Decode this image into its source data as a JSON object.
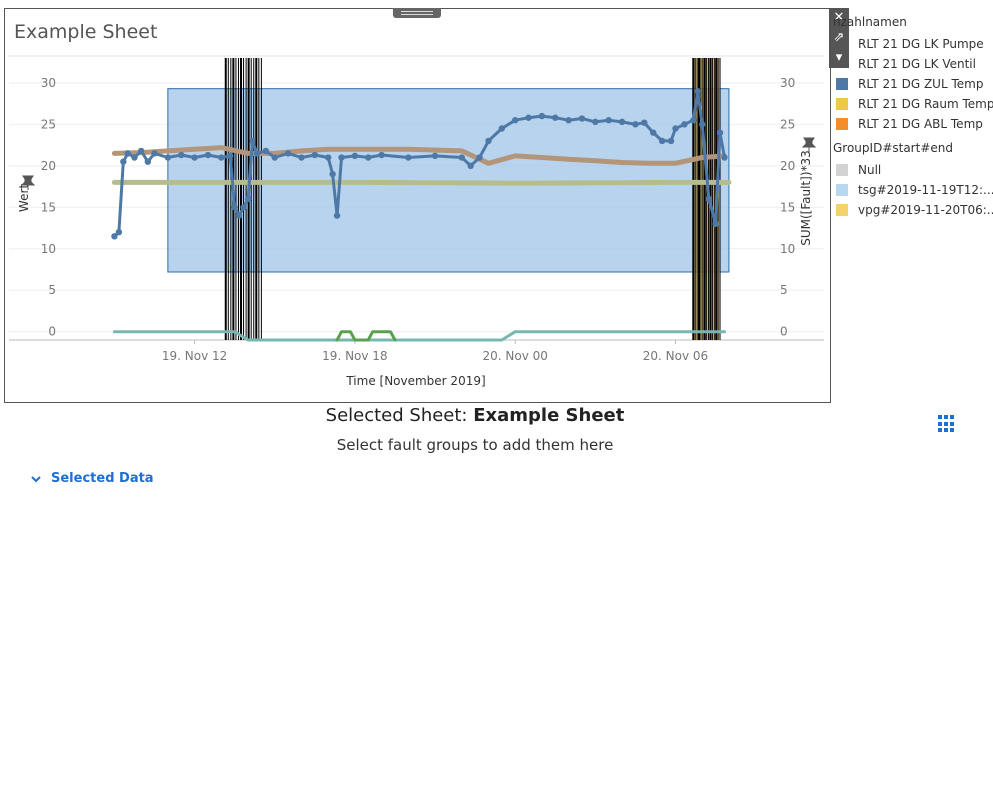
{
  "sheet": {
    "title": "Example Sheet",
    "toolbar": {
      "close_label": "✕",
      "popout_label": "⇗",
      "menu_label": "▾"
    }
  },
  "chart_data": {
    "type": "line",
    "title": "Example Sheet",
    "xlabel": "Time [November 2019]",
    "ylabel": "Wert",
    "y2label": "SUM([Fault])*33",
    "ylim": [
      -1,
      33
    ],
    "x_start": "2019-11-19T07:00",
    "x_end": "2019-11-20T09:30",
    "x_ticks": [
      {
        "t": "2019-11-19T12:00",
        "label": "19. Nov 12"
      },
      {
        "t": "2019-11-19T18:00",
        "label": "19. Nov 18"
      },
      {
        "t": "2019-11-20T00:00",
        "label": "20. Nov 00"
      },
      {
        "t": "2019-11-20T06:00",
        "label": "20. Nov 06"
      }
    ],
    "y_ticks": [
      0,
      5,
      10,
      15,
      20,
      25,
      30
    ],
    "grid": true,
    "series": [
      {
        "name": "RLT 21 DG ZUL Temp",
        "color": "#4e79a7",
        "markers": true,
        "points": [
          [
            "2019-11-19T09:00",
            11.5
          ],
          [
            "2019-11-19T09:10",
            12
          ],
          [
            "2019-11-19T09:20",
            20.5
          ],
          [
            "2019-11-19T09:30",
            21.5
          ],
          [
            "2019-11-19T09:45",
            21
          ],
          [
            "2019-11-19T10:00",
            21.8
          ],
          [
            "2019-11-19T10:15",
            20.5
          ],
          [
            "2019-11-19T10:30",
            21.5
          ],
          [
            "2019-11-19T11:00",
            21
          ],
          [
            "2019-11-19T11:30",
            21.3
          ],
          [
            "2019-11-19T12:00",
            21
          ],
          [
            "2019-11-19T12:30",
            21.3
          ],
          [
            "2019-11-19T13:00",
            21
          ],
          [
            "2019-11-19T13:20",
            21.2
          ],
          [
            "2019-11-19T13:30",
            15
          ],
          [
            "2019-11-19T13:40",
            14
          ],
          [
            "2019-11-19T13:50",
            15
          ],
          [
            "2019-11-19T14:00",
            16
          ],
          [
            "2019-11-19T14:10",
            23
          ],
          [
            "2019-11-19T14:20",
            21.5
          ],
          [
            "2019-11-19T14:40",
            21.8
          ],
          [
            "2019-11-19T15:00",
            21
          ],
          [
            "2019-11-19T15:30",
            21.5
          ],
          [
            "2019-11-19T16:00",
            21
          ],
          [
            "2019-11-19T16:30",
            21.3
          ],
          [
            "2019-11-19T17:00",
            21
          ],
          [
            "2019-11-19T17:10",
            19
          ],
          [
            "2019-11-19T17:20",
            14
          ],
          [
            "2019-11-19T17:30",
            21
          ],
          [
            "2019-11-19T18:00",
            21.2
          ],
          [
            "2019-11-19T18:30",
            21
          ],
          [
            "2019-11-19T19:00",
            21.3
          ],
          [
            "2019-11-19T20:00",
            21
          ],
          [
            "2019-11-19T21:00",
            21.2
          ],
          [
            "2019-11-19T22:00",
            21
          ],
          [
            "2019-11-19T22:20",
            20
          ],
          [
            "2019-11-19T22:40",
            21
          ],
          [
            "2019-11-19T23:00",
            23
          ],
          [
            "2019-11-19T23:30",
            24.5
          ],
          [
            "2019-11-20T00:00",
            25.5
          ],
          [
            "2019-11-20T00:30",
            25.8
          ],
          [
            "2019-11-20T01:00",
            26
          ],
          [
            "2019-11-20T01:30",
            25.8
          ],
          [
            "2019-11-20T02:00",
            25.5
          ],
          [
            "2019-11-20T02:30",
            25.7
          ],
          [
            "2019-11-20T03:00",
            25.3
          ],
          [
            "2019-11-20T03:30",
            25.5
          ],
          [
            "2019-11-20T04:00",
            25.3
          ],
          [
            "2019-11-20T04:30",
            25
          ],
          [
            "2019-11-20T04:50",
            25.2
          ],
          [
            "2019-11-20T05:10",
            24
          ],
          [
            "2019-11-20T05:30",
            23
          ],
          [
            "2019-11-20T05:50",
            23
          ],
          [
            "2019-11-20T06:00",
            24.5
          ],
          [
            "2019-11-20T06:20",
            25
          ],
          [
            "2019-11-20T06:40",
            25.5
          ],
          [
            "2019-11-20T06:50",
            29
          ],
          [
            "2019-11-20T07:00",
            25
          ],
          [
            "2019-11-20T07:15",
            16
          ],
          [
            "2019-11-20T07:30",
            13
          ],
          [
            "2019-11-20T07:40",
            24
          ],
          [
            "2019-11-20T07:50",
            21
          ]
        ]
      },
      {
        "name": "RLT 21 DG ABL Temp",
        "color": "#b3957a",
        "markers": false,
        "points": [
          [
            "2019-11-19T09:00",
            21.5
          ],
          [
            "2019-11-19T10:00",
            21.6
          ],
          [
            "2019-11-19T11:00",
            21.8
          ],
          [
            "2019-11-19T12:00",
            22
          ],
          [
            "2019-11-19T13:00",
            22.2
          ],
          [
            "2019-11-19T14:00",
            21.5
          ],
          [
            "2019-11-19T15:00",
            21.5
          ],
          [
            "2019-11-19T16:00",
            21.8
          ],
          [
            "2019-11-19T17:00",
            22
          ],
          [
            "2019-11-19T18:00",
            22
          ],
          [
            "2019-11-19T20:00",
            22
          ],
          [
            "2019-11-19T22:00",
            21.8
          ],
          [
            "2019-11-19T23:00",
            20.3
          ],
          [
            "2019-11-20T00:00",
            21.2
          ],
          [
            "2019-11-20T01:00",
            21
          ],
          [
            "2019-11-20T02:00",
            20.8
          ],
          [
            "2019-11-20T03:00",
            20.6
          ],
          [
            "2019-11-20T04:00",
            20.4
          ],
          [
            "2019-11-20T05:00",
            20.3
          ],
          [
            "2019-11-20T06:00",
            20.3
          ],
          [
            "2019-11-20T07:00",
            21
          ],
          [
            "2019-11-20T07:50",
            21.2
          ]
        ]
      },
      {
        "name": "RLT 21 DG Raum Temp",
        "color": "#b5bd8c",
        "markers": false,
        "points": [
          [
            "2019-11-19T09:00",
            18
          ],
          [
            "2019-11-19T12:00",
            18
          ],
          [
            "2019-11-19T18:00",
            18
          ],
          [
            "2019-11-20T00:00",
            17.9
          ],
          [
            "2019-11-20T06:00",
            18
          ],
          [
            "2019-11-20T08:00",
            18
          ]
        ]
      },
      {
        "name": "RLT 21 DG LK Pumpe",
        "color": "#76b7b2",
        "markers": false,
        "points": [
          [
            "2019-11-19T09:00",
            0
          ],
          [
            "2019-11-19T13:30",
            0
          ],
          [
            "2019-11-19T14:00",
            -1
          ],
          [
            "2019-11-19T23:30",
            -1
          ],
          [
            "2019-11-20T00:00",
            0
          ],
          [
            "2019-11-20T07:50",
            0
          ]
        ]
      },
      {
        "name": "RLT 21 DG LK Ventil",
        "color": "#59a14f",
        "markers": false,
        "points": [
          [
            "2019-11-19T17:20",
            -1
          ],
          [
            "2019-11-19T17:30",
            0
          ],
          [
            "2019-11-19T17:50",
            0
          ],
          [
            "2019-11-19T18:00",
            -1
          ],
          [
            "2019-11-19T18:30",
            -1
          ],
          [
            "2019-11-19T18:40",
            0
          ],
          [
            "2019-11-19T19:20",
            0
          ],
          [
            "2019-11-19T19:30",
            -1
          ]
        ]
      }
    ],
    "fault_regions": [
      {
        "group": "tsg#2019-11-19T12:...",
        "color": "#a0c4e8",
        "x0": "2019-11-19T11:00",
        "x1": "2019-11-20T08:00",
        "y0": 7.2,
        "y1": 29.3
      },
      {
        "group": "tsg",
        "color": "#000000",
        "x0": "2019-11-19T13:10",
        "x1": "2019-11-19T14:30",
        "y0": -1,
        "y1": 33
      },
      {
        "group": "vpg#2019-11-20T06:...",
        "color": "#f0cd55",
        "x0": "2019-11-20T06:40",
        "x1": "2019-11-20T07:40",
        "y0": -1,
        "y1": 33
      }
    ]
  },
  "legend": {
    "measure_title": "nzahlnamen",
    "measures": [
      {
        "label": "RLT 21 DG LK Pumpe",
        "color": "#76b7b2",
        "swatch": false
      },
      {
        "label": "RLT 21 DG LK Ventil",
        "color": "#59a14f",
        "swatch": false
      },
      {
        "label": "RLT 21 DG ZUL Temp",
        "color": "#4e79a7",
        "swatch": true
      },
      {
        "label": "RLT 21 DG Raum Temp",
        "color": "#edc948",
        "swatch": true
      },
      {
        "label": "RLT 21 DG ABL Temp",
        "color": "#f28e2b",
        "swatch": true
      }
    ],
    "group_title": "GroupID#start#end",
    "groups": [
      {
        "label": "Null",
        "color": "#d3d3d3"
      },
      {
        "label": "tsg#2019-11-19T12:...",
        "color": "#b9d8f0"
      },
      {
        "label": "vpg#2019-11-20T06:...",
        "color": "#f3d36b"
      }
    ]
  },
  "panel": {
    "selected_prefix": "Selected Sheet: ",
    "selected_name": "Example Sheet",
    "instruction": "Select fault groups to add them here",
    "selected_data_label": "Selected Data"
  }
}
